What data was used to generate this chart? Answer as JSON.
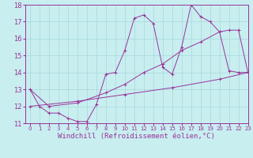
{
  "xlabel": "Windchill (Refroidissement éolien,°C)",
  "xlim": [
    -0.5,
    23
  ],
  "ylim": [
    11,
    18
  ],
  "yticks": [
    11,
    12,
    13,
    14,
    15,
    16,
    17,
    18
  ],
  "xticks": [
    0,
    1,
    2,
    3,
    4,
    5,
    6,
    7,
    8,
    9,
    10,
    11,
    12,
    13,
    14,
    15,
    16,
    17,
    18,
    19,
    20,
    21,
    22,
    23
  ],
  "bg_color": "#c8eef0",
  "line_color": "#993399",
  "line1_x": [
    0,
    1,
    2,
    3,
    4,
    5,
    6,
    7,
    8,
    9,
    10,
    11,
    12,
    13,
    14,
    15,
    16,
    17,
    18,
    19,
    20,
    21,
    22,
    23
  ],
  "line1_y": [
    13.0,
    12.0,
    11.6,
    11.6,
    11.3,
    11.1,
    11.1,
    12.1,
    13.9,
    14.0,
    15.3,
    17.2,
    17.4,
    16.9,
    14.3,
    13.9,
    15.5,
    18.0,
    17.3,
    17.0,
    16.4,
    14.1,
    14.0,
    14.0
  ],
  "line2_x": [
    0,
    2,
    5,
    8,
    10,
    12,
    14,
    16,
    18,
    20,
    21,
    22,
    23
  ],
  "line2_y": [
    13.0,
    12.0,
    12.2,
    12.8,
    13.3,
    14.0,
    14.5,
    15.3,
    15.8,
    16.4,
    16.5,
    16.5,
    14.0
  ],
  "line3_x": [
    0,
    5,
    10,
    15,
    20,
    23
  ],
  "line3_y": [
    12.0,
    12.3,
    12.7,
    13.1,
    13.6,
    14.0
  ],
  "grid_color": "#a8d8da",
  "tick_fontsize": 5,
  "xlabel_fontsize": 6.5
}
